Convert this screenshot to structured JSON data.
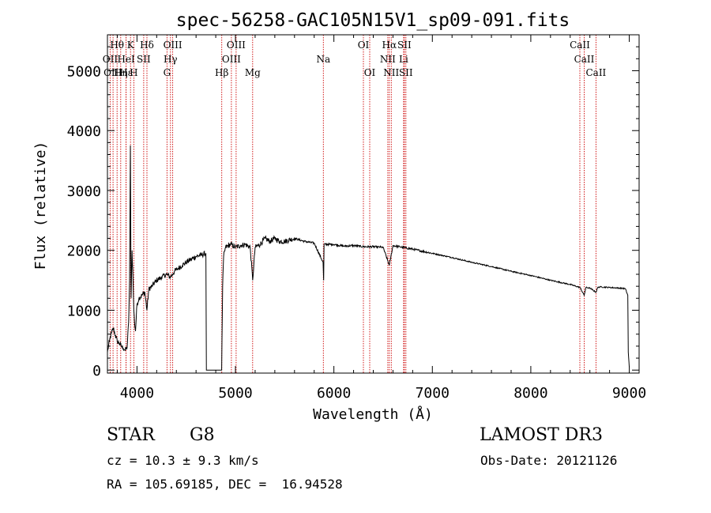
{
  "chart_data": {
    "type": "line",
    "title": "spec-56258-GAC105N15V1_sp09-091.fits",
    "xlabel": "Wavelength (Å)",
    "ylabel": "Flux (relative)",
    "xlim": [
      3700,
      9100
    ],
    "ylim": [
      -50,
      5600
    ],
    "xticks": [
      4000,
      5000,
      6000,
      7000,
      8000,
      9000
    ],
    "yticks": [
      0,
      1000,
      2000,
      3000,
      4000,
      5000
    ],
    "grid": false,
    "series": [
      {
        "name": "spectrum",
        "x": [
          3700,
          3720,
          3740,
          3760,
          3780,
          3800,
          3820,
          3840,
          3860,
          3880,
          3900,
          3915,
          3925,
          3933,
          3940,
          3950,
          3960,
          3968,
          3975,
          3985,
          4000,
          4020,
          4050,
          4080,
          4101,
          4120,
          4150,
          4200,
          4250,
          4300,
          4340,
          4380,
          4420,
          4460,
          4500,
          4550,
          4600,
          4650,
          4700,
          4705,
          4710,
          4720,
          4760,
          4800,
          4840,
          4860,
          4870,
          4880,
          4900,
          4950,
          5000,
          5050,
          5100,
          5150,
          5175,
          5200,
          5250,
          5300,
          5350,
          5400,
          5450,
          5500,
          5600,
          5700,
          5800,
          5890,
          5896,
          5900,
          6000,
          6100,
          6200,
          6300,
          6400,
          6500,
          6563,
          6600,
          6700,
          6800,
          7000,
          7200,
          7400,
          7600,
          7800,
          8000,
          8200,
          8400,
          8500,
          8542,
          8560,
          8600,
          8662,
          8680,
          8700,
          8800,
          8900,
          8960,
          8985,
          8990,
          9000
        ],
        "values": [
          300,
          480,
          620,
          700,
          580,
          480,
          450,
          400,
          370,
          330,
          380,
          800,
          1500,
          3750,
          1200,
          2000,
          1500,
          1000,
          800,
          650,
          1100,
          1200,
          1250,
          1300,
          1000,
          1350,
          1400,
          1500,
          1550,
          1600,
          1550,
          1650,
          1700,
          1750,
          1800,
          1850,
          1900,
          1920,
          1950,
          0,
          0,
          0,
          0,
          0,
          0,
          0,
          1400,
          1900,
          2050,
          2100,
          2050,
          2080,
          2100,
          2050,
          1500,
          2050,
          2100,
          2200,
          2150,
          2200,
          2150,
          2150,
          2200,
          2150,
          2120,
          1800,
          1500,
          2100,
          2100,
          2070,
          2080,
          2060,
          2060,
          2050,
          1750,
          2080,
          2050,
          2020,
          1950,
          1880,
          1800,
          1730,
          1650,
          1580,
          1500,
          1430,
          1380,
          1250,
          1380,
          1370,
          1300,
          1380,
          1390,
          1380,
          1370,
          1360,
          1250,
          300,
          50
        ]
      }
    ],
    "lines": [
      {
        "name": "Hθ",
        "x": 3798,
        "row": 0
      },
      {
        "name": "OII",
        "x": 3727,
        "row": 1
      },
      {
        "name": "OIII",
        "x": 3757,
        "row": 2
      },
      {
        "name": "Hη",
        "x": 3835,
        "row": 2
      },
      {
        "name": "Hε",
        "x": 3889,
        "row": 2
      },
      {
        "name": "HeI",
        "x": 3889,
        "row": 1
      },
      {
        "name": "K",
        "x": 3934,
        "row": 0
      },
      {
        "name": "H",
        "x": 3968,
        "row": 2
      },
      {
        "name": "Hδ",
        "x": 4101,
        "row": 0
      },
      {
        "name": "SII",
        "x": 4068,
        "row": 1
      },
      {
        "name": "OIII",
        "x": 4363,
        "row": 0
      },
      {
        "name": "Hγ",
        "x": 4340,
        "row": 1
      },
      {
        "name": "G",
        "x": 4305,
        "row": 2
      },
      {
        "name": "Hβ",
        "x": 4861,
        "row": 2
      },
      {
        "name": "OIII",
        "x": 5007,
        "row": 0
      },
      {
        "name": "OIII",
        "x": 4959,
        "row": 1
      },
      {
        "name": "Mg",
        "x": 5175,
        "row": 2
      },
      {
        "name": "Na",
        "x": 5893,
        "row": 1
      },
      {
        "name": "OI",
        "x": 6300,
        "row": 0
      },
      {
        "name": "OI",
        "x": 6364,
        "row": 2
      },
      {
        "name": "Hα",
        "x": 6563,
        "row": 0
      },
      {
        "name": "NII",
        "x": 6548,
        "row": 1
      },
      {
        "name": "NII",
        "x": 6583,
        "row": 2
      },
      {
        "name": "SII",
        "x": 6716,
        "row": 0
      },
      {
        "name": "Li",
        "x": 6708,
        "row": 1
      },
      {
        "name": "SII",
        "x": 6731,
        "row": 2
      },
      {
        "name": "CaII",
        "x": 8498,
        "row": 0
      },
      {
        "name": "CaII",
        "x": 8542,
        "row": 1
      },
      {
        "name": "CaII",
        "x": 8662,
        "row": 2
      }
    ]
  },
  "info": {
    "object_class": "STAR",
    "subclass": "G8",
    "survey": "LAMOST DR3",
    "cz": "cz = 10.3 ± 9.3 km/s",
    "obs_date": "Obs-Date: 20121126",
    "coords": "RA = 105.69185, DEC =  16.94528"
  },
  "colors": {
    "axis": "#000000",
    "spectrum": "#000000",
    "line_marker": "#cc0000",
    "background": "#ffffff"
  }
}
